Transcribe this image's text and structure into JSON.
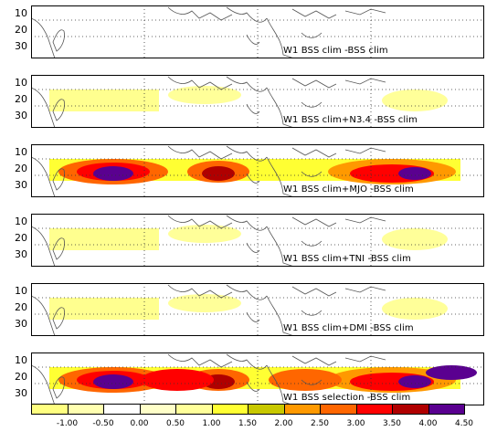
{
  "figure": {
    "panels": [
      {
        "title": "W1 BSS clim -BSS clim",
        "y_labels": [
          "10",
          "20",
          "30"
        ],
        "intensity": 0
      },
      {
        "title": "W1 BSS clim+N3.4 -BSS clim",
        "y_labels": [
          "10",
          "20",
          "30"
        ],
        "intensity": 1
      },
      {
        "title": "W1 BSS clim+MJO -BSS clim",
        "y_labels": [
          "10",
          "20",
          "30"
        ],
        "intensity": 3
      },
      {
        "title": "W1 BSS clim+TNI -BSS clim",
        "y_labels": [
          "10",
          "20",
          "30"
        ],
        "intensity": 1
      },
      {
        "title": "W1 BSS clim+DMI -BSS clim",
        "y_labels": [
          "10",
          "20",
          "30"
        ],
        "intensity": 1
      },
      {
        "title": "W1 BSS selection -BSS clim",
        "y_labels": [
          "10",
          "20",
          "30"
        ],
        "intensity": 4
      }
    ],
    "colorbar": {
      "labels": [
        "-1.00",
        "-0.50",
        "0.00",
        "0.50",
        "1.00",
        "1.50",
        "2.00",
        "2.50",
        "3.00",
        "3.50",
        "4.00",
        "4.50"
      ],
      "colors": [
        "#ffff80",
        "#ffffb0",
        "#ffffff",
        "#ffffc8",
        "#ffff99",
        "#ffff33",
        "#c8c800",
        "#ff9900",
        "#ff6600",
        "#ff0000",
        "#b00000",
        "#5a0090"
      ]
    }
  }
}
